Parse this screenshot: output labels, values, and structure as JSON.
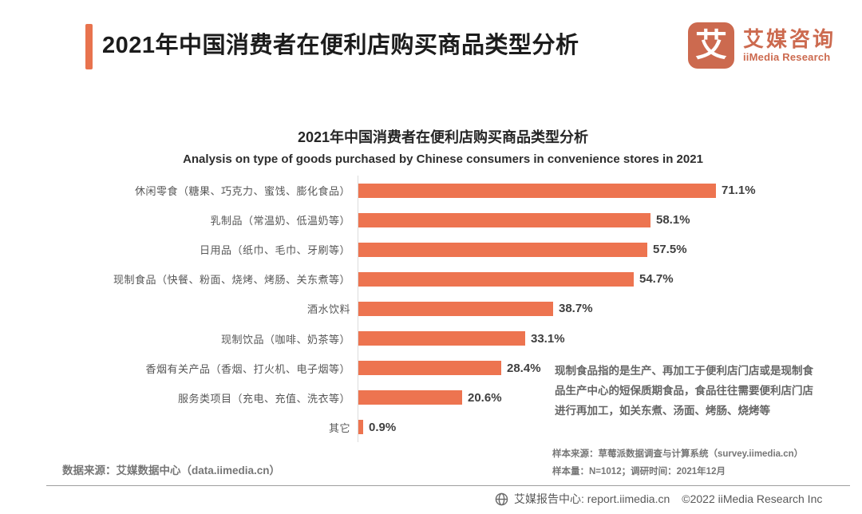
{
  "header": {
    "title": "2021年中国消费者在便利店购买商品类型分析",
    "logo": {
      "mark": "艾",
      "name_cn": "艾媒咨询",
      "name_en": "iiMedia Research",
      "color": "#CC6A4F"
    },
    "accent_color": "#E8734E"
  },
  "chart_data": {
    "type": "bar",
    "orientation": "horizontal",
    "title": "2021年中国消费者在便利店购买商品类型分析",
    "subtitle": "Analysis on type of goods purchased by Chinese consumers in convenience stores in 2021",
    "categories": [
      "休闲零食（糖果、巧克力、蜜饯、膨化食品）",
      "乳制品（常温奶、低温奶等）",
      "日用品（纸巾、毛巾、牙刷等）",
      "现制食品（快餐、粉面、烧烤、烤肠、关东煮等）",
      "酒水饮料",
      "现制饮品（咖啡、奶茶等）",
      "香烟有关产品（香烟、打火机、电子烟等）",
      "服务类项目（充电、充值、洗衣等）",
      "其它"
    ],
    "values": [
      71.1,
      58.1,
      57.5,
      54.7,
      38.7,
      33.1,
      28.4,
      20.6,
      0.9
    ],
    "value_labels": [
      "71.1%",
      "58.1%",
      "57.5%",
      "54.7%",
      "38.7%",
      "33.1%",
      "28.4%",
      "20.6%",
      "0.9%"
    ],
    "unit": "%",
    "bar_color": "#ED7450",
    "xlim": [
      0,
      75
    ],
    "grid": false,
    "legend": false,
    "value_label_position": "end-of-bar"
  },
  "annotation": "现制食品指的是生产、再加工于便利店门店或是现制食品生产中心的短保质期食品，食品往往需要便利店门店进行再加工，如关东煮、汤面、烤肠、烧烤等",
  "footnotes": {
    "sample_source": "样本来源：草莓派数据调查与计算系统（survey.iimedia.cn）",
    "sample_size": "样本量：N=1012；调研时间：2021年12月",
    "data_source": "数据来源：艾媒数据中心（data.iimedia.cn）"
  },
  "footer": {
    "report_center": "艾媒报告中心: report.iimedia.cn",
    "copyright": "©2022  iiMedia Research Inc"
  }
}
